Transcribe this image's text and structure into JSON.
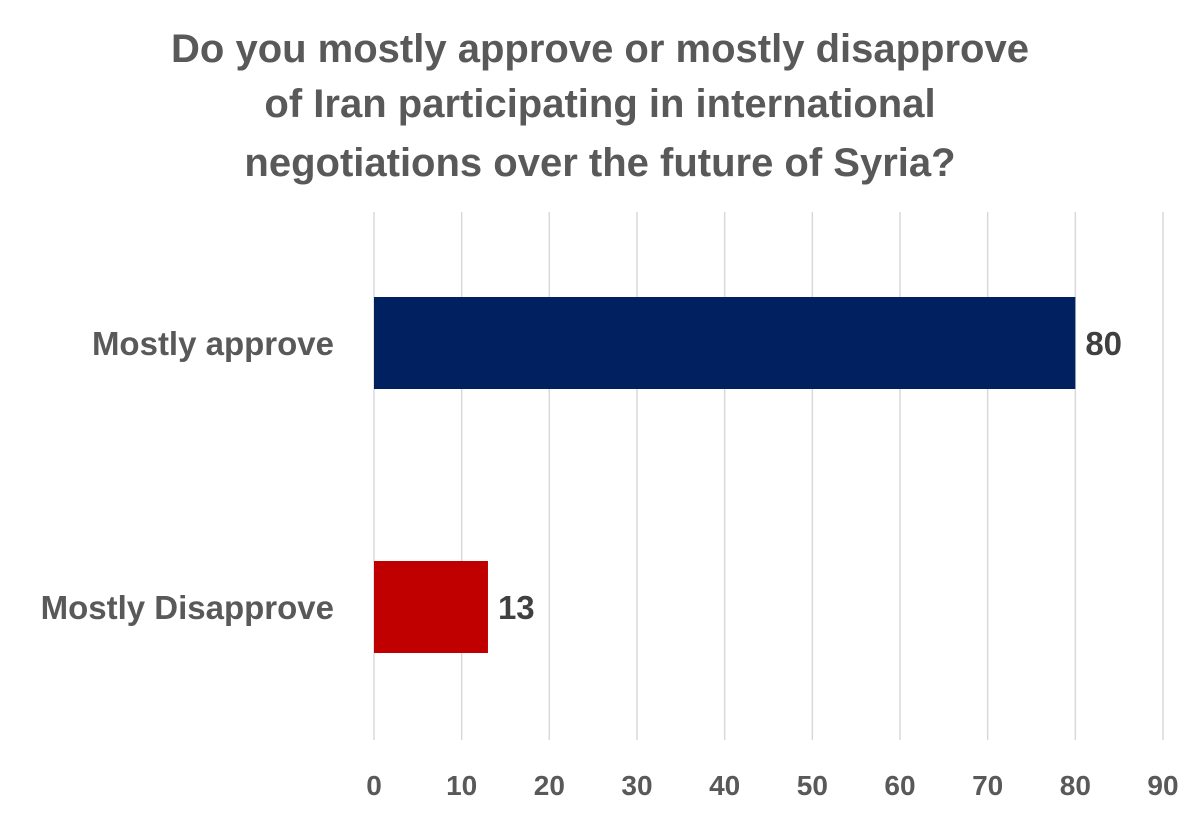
{
  "chart_data": {
    "type": "bar",
    "orientation": "horizontal",
    "title": "Do you mostly approve or mostly disapprove of Iran participating in international negotiations over the future of Syria?",
    "title_lines": [
      "Do you mostly approve or mostly disapprove",
      "of Iran participating in international",
      "negotiations over the future of Syria?"
    ],
    "categories": [
      "Mostly approve",
      "Mostly Disapprove"
    ],
    "values": [
      80,
      13
    ],
    "data_labels": [
      "80",
      "13"
    ],
    "bar_colors": [
      "#002060",
      "#c00000"
    ],
    "xlim": [
      0,
      90
    ],
    "xticks": [
      0,
      10,
      20,
      30,
      40,
      50,
      60,
      70,
      80,
      90
    ],
    "xtick_labels": [
      "0",
      "10",
      "20",
      "30",
      "40",
      "50",
      "60",
      "70",
      "80",
      "90"
    ],
    "xlabel": "",
    "ylabel": "",
    "grid": true,
    "legend": "none",
    "colors": {
      "title_text": "#595959",
      "label_text": "#595959",
      "data_label_text": "#404040",
      "gridline": "#d9d9d9"
    }
  }
}
